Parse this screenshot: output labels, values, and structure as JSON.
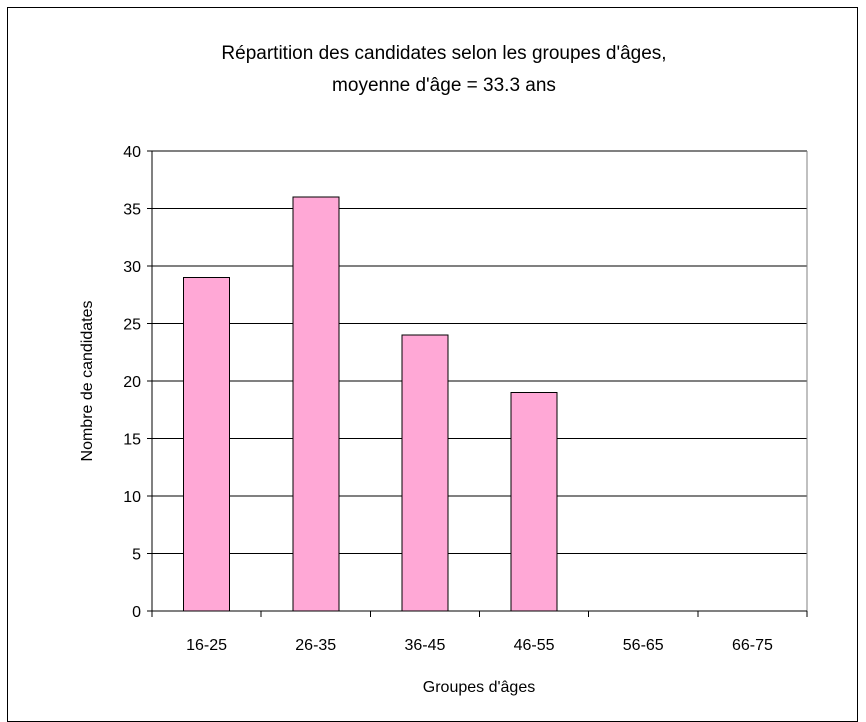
{
  "chart_data": {
    "type": "bar",
    "title": "Répartition des candidates selon les groupes d'âges,",
    "subtitle": "moyenne d'âge = 33.3 ans",
    "xlabel": "Groupes d'âges",
    "ylabel": "Nombre de candidates",
    "categories": [
      "16-25",
      "26-35",
      "36-45",
      "46-55",
      "56-65",
      "66-75"
    ],
    "values": [
      29,
      36,
      24,
      19,
      0,
      0
    ],
    "ylim": [
      0,
      40
    ],
    "yticks": [
      "0",
      "5",
      "10",
      "15",
      "20",
      "25",
      "30",
      "35",
      "40"
    ],
    "grid": true,
    "legend": "none",
    "colors": {
      "bar_fill": "#FFA8D6",
      "bar_stroke": "#000000",
      "grid": "#000000",
      "plot_bg": "#ffffff"
    }
  }
}
